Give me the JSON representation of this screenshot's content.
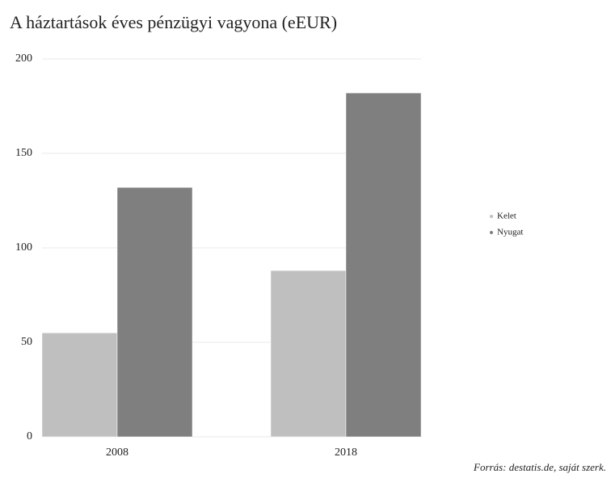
{
  "chart_data": {
    "type": "bar",
    "title": "A háztartások éves pénzügyi vagyona (eEUR)",
    "categories": [
      "2008",
      "2018"
    ],
    "series": [
      {
        "name": "Kelet",
        "color": "#bfbfbf",
        "values": [
          55,
          88
        ]
      },
      {
        "name": "Nyugat",
        "color": "#7f7f7f",
        "values": [
          132,
          182
        ]
      }
    ],
    "ylim": [
      0,
      200
    ],
    "yticks": [
      0,
      50,
      100,
      150,
      200
    ],
    "grid": true,
    "legend": "right",
    "caption": "Forrás: destatis.de, saját szerk."
  }
}
